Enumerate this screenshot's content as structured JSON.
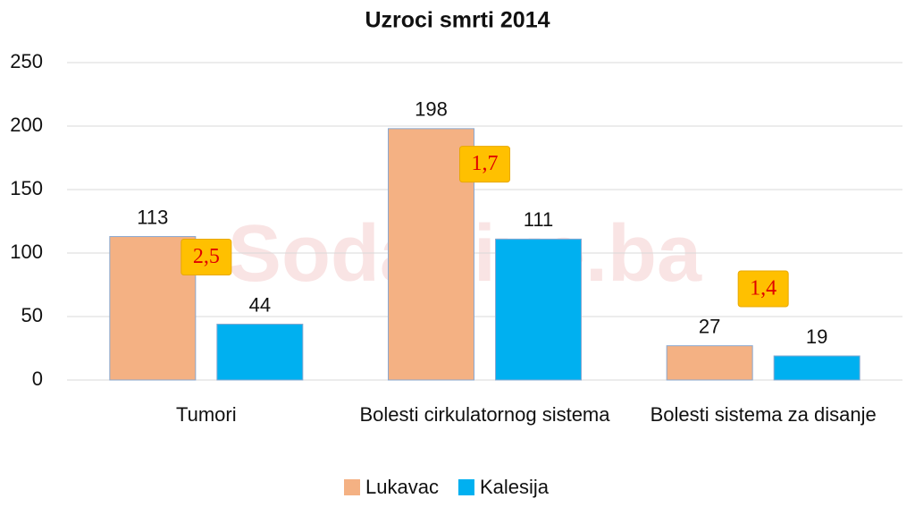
{
  "chart_data": {
    "type": "bar",
    "title": "Uzroci smrti 2014",
    "watermark": "SodaLive.ba",
    "categories": [
      "Tumori",
      "Bolesti cirkulatornog sistema",
      "Bolesti sistema za disanje"
    ],
    "series": [
      {
        "name": "Lukavac",
        "color": "#f4b183",
        "values": [
          113,
          198,
          27
        ]
      },
      {
        "name": "Kalesija",
        "color": "#00b0f0",
        "values": [
          44,
          111,
          19
        ]
      }
    ],
    "annotations": [
      "2,5",
      "1,7",
      "1,4"
    ],
    "ylim": [
      0,
      250
    ],
    "yticks": [
      0,
      50,
      100,
      150,
      200,
      250
    ],
    "grid": true,
    "legend": "bottom"
  }
}
